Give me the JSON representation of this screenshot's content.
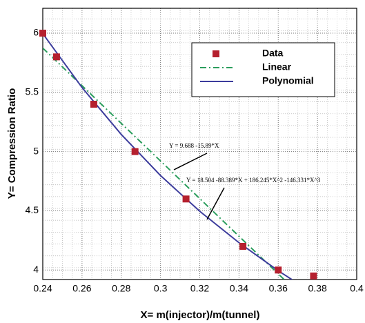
{
  "chart_data": {
    "type": "line",
    "xlabel": "X= m(injector)/m(tunnel)",
    "ylabel": "Y= Compression Ratio",
    "xlim": [
      0.24,
      0.4
    ],
    "xticks": [
      0.24,
      0.26,
      0.28,
      0.3,
      0.32,
      0.34,
      0.36,
      0.38,
      0.4
    ],
    "ylim": [
      3.92,
      6.21
    ],
    "yticks": [
      4,
      4.5,
      5,
      5.5,
      6
    ],
    "grid": true,
    "legend": "upper right",
    "annotations": [
      "Y = 9.688 -15.89*X",
      "Y = 18.504 -88.389*X + 186.245*X^2 -146.331*X^3"
    ],
    "series": [
      {
        "name": "Data",
        "color": "#b5202e",
        "style": "marker",
        "x": [
          0.24,
          0.247,
          0.266,
          0.287,
          0.313,
          0.342,
          0.36,
          0.378
        ],
        "values": [
          6.0,
          5.8,
          5.4,
          5.0,
          4.6,
          4.2,
          4.0,
          3.95
        ]
      },
      {
        "name": "Linear",
        "color": "#2a9d5c",
        "style": "dashdot",
        "x": [
          0.24,
          0.37
        ],
        "values": [
          5.874,
          3.809
        ]
      },
      {
        "name": "Polynomial",
        "color": "#3c3c9c",
        "style": "solid",
        "x": [
          0.24,
          0.26,
          0.28,
          0.3,
          0.32,
          0.34,
          0.36,
          0.38
        ],
        "values": [
          5.996,
          5.541,
          5.145,
          4.798,
          4.496,
          4.231,
          3.994,
          3.781
        ]
      }
    ]
  }
}
